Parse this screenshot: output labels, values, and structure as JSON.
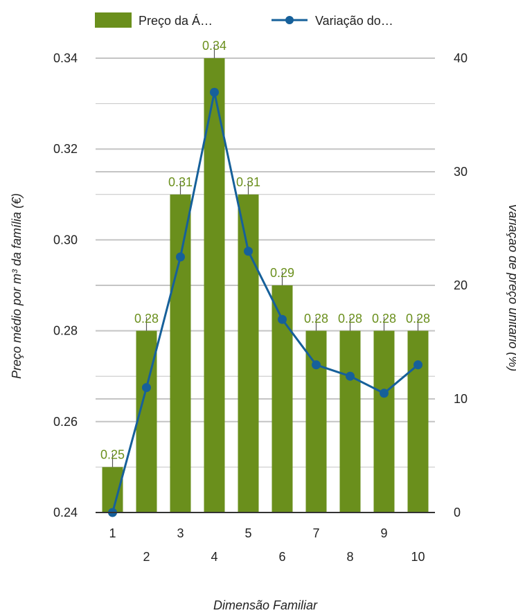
{
  "chart_data": {
    "type": "bar",
    "categories": [
      "1",
      "2",
      "3",
      "4",
      "5",
      "6",
      "7",
      "8",
      "9",
      "10"
    ],
    "series": [
      {
        "name": "Preço da Á…",
        "type": "bar",
        "axis": "left",
        "values": [
          0.25,
          0.28,
          0.31,
          0.34,
          0.31,
          0.29,
          0.28,
          0.28,
          0.28,
          0.28
        ],
        "labels": [
          "0.25",
          "0.28",
          "0.31",
          "0.34",
          "0.31",
          "0.29",
          "0.28",
          "0.28",
          "0.28",
          "0.28"
        ],
        "error": [
          0.0015,
          0.0015,
          0.0015,
          0.0015,
          0.0015,
          0.0015,
          0.0015,
          0.0015,
          0.0015,
          0.0015
        ]
      },
      {
        "name": "Variação do…",
        "type": "line",
        "axis": "right",
        "values": [
          0,
          11,
          22.5,
          37,
          23,
          17,
          13,
          12,
          10.5,
          13
        ]
      }
    ],
    "xlabel": "Dimensão Familiar",
    "ylabel": "Preço médio por m³ da família (€)",
    "y2label": "Variação de preço unitário (%)",
    "ylim": [
      0.24,
      0.34
    ],
    "y2lim": [
      0,
      40
    ],
    "yticks": [
      "0.24",
      "0.26",
      "0.28",
      "0.30",
      "0.32",
      "0.34"
    ],
    "y2ticks": [
      "0",
      "10",
      "20",
      "30",
      "40"
    ],
    "grid": true,
    "legend": "top",
    "colors": {
      "bar": "#6a8f1c",
      "line": "#16609a",
      "label": "#6a8f1c",
      "grid": "#c4c4c4",
      "axis": "#333333"
    }
  }
}
